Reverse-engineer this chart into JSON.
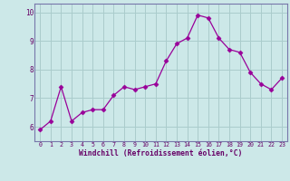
{
  "hours": [
    0,
    1,
    2,
    3,
    4,
    5,
    6,
    7,
    8,
    9,
    10,
    11,
    12,
    13,
    14,
    15,
    16,
    17,
    18,
    19,
    20,
    21,
    22,
    23
  ],
  "windchill": [
    5.9,
    6.2,
    7.4,
    6.2,
    6.5,
    6.6,
    6.6,
    7.1,
    7.4,
    7.3,
    7.4,
    7.5,
    8.3,
    8.9,
    9.1,
    9.9,
    9.8,
    9.1,
    8.7,
    8.6,
    7.9,
    7.5,
    7.3,
    7.7
  ],
  "line_color": "#990099",
  "marker": "D",
  "marker_size": 2.5,
  "bg_color": "#cce8e8",
  "grid_color": "#aacccc",
  "ylabel_ticks": [
    6,
    7,
    8,
    9,
    10
  ],
  "xlabel": "Windchill (Refroidissement éolien,°C)",
  "xlim": [
    -0.5,
    23.5
  ],
  "ylim": [
    5.5,
    10.3
  ],
  "spine_color": "#7777aa"
}
